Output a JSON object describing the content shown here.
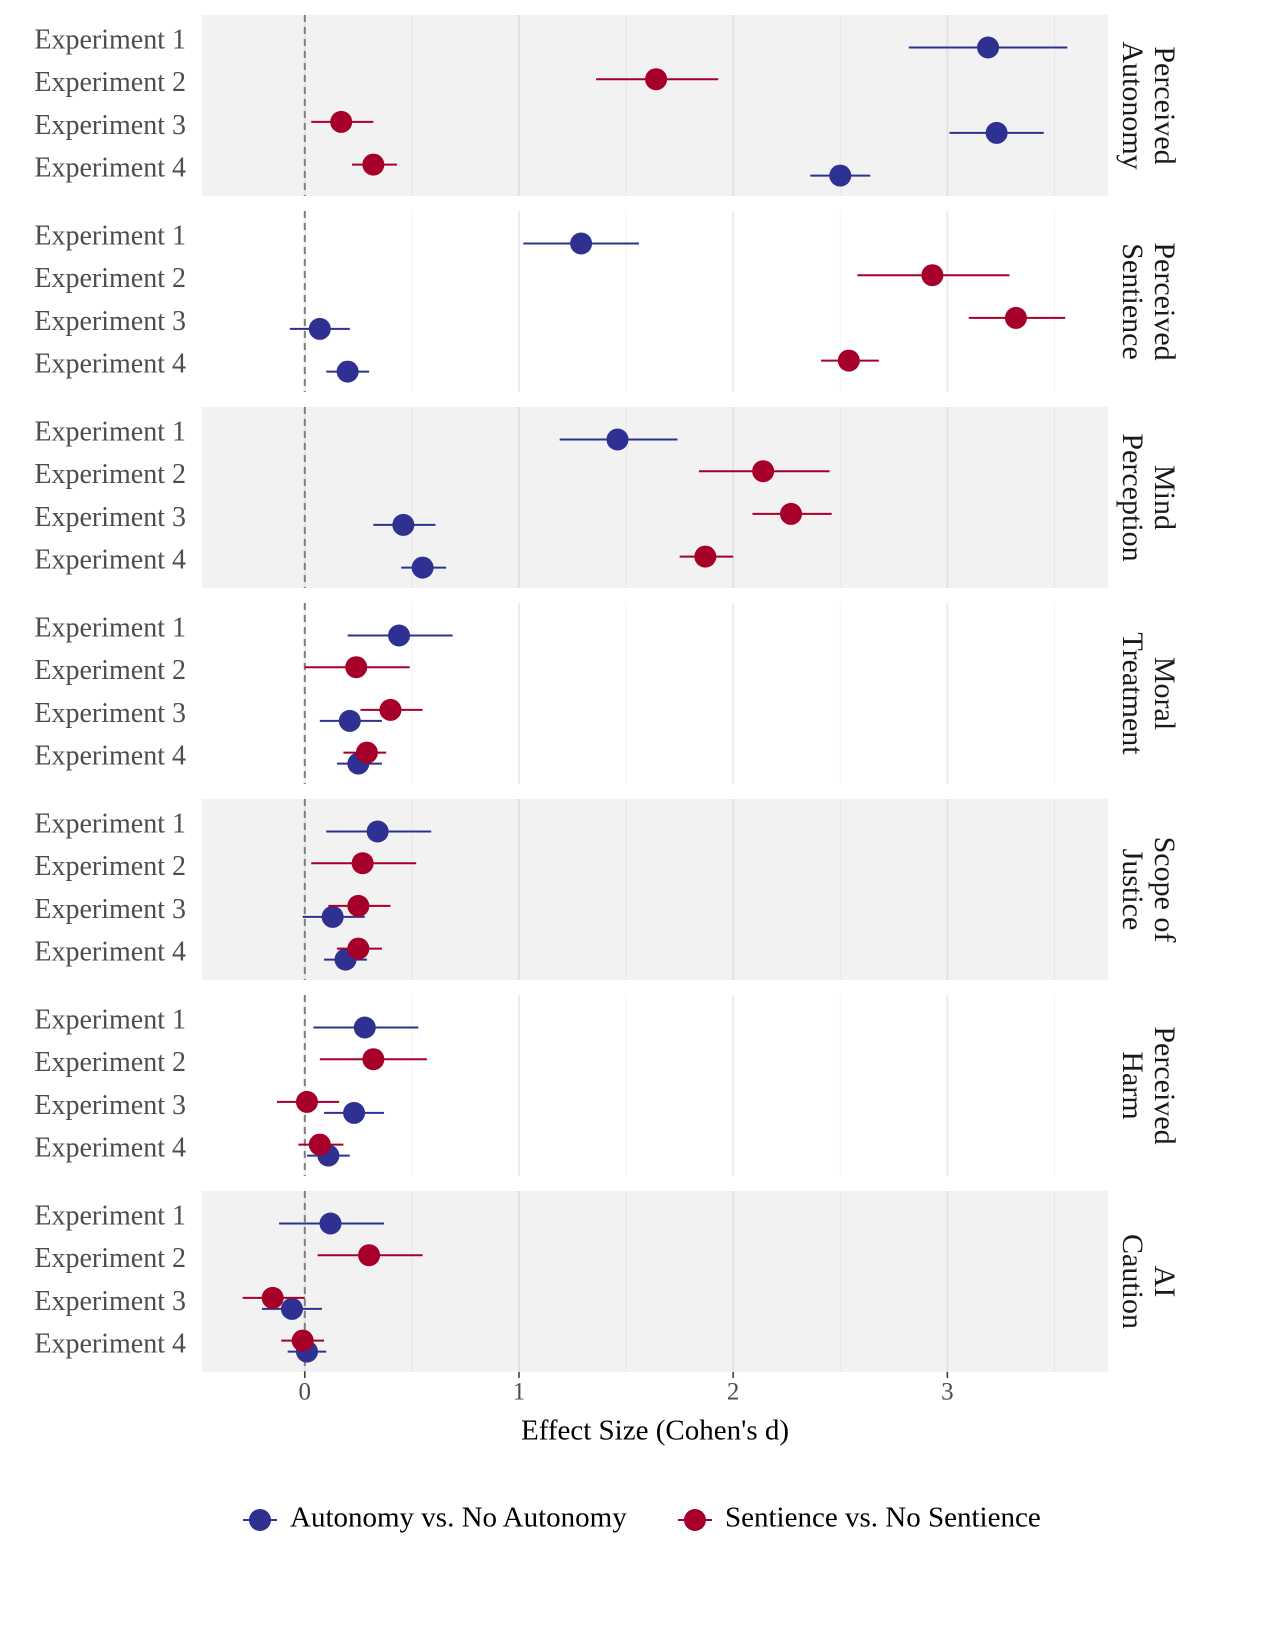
{
  "chart_data": {
    "type": "forest",
    "x_label": "Effect Size (Cohen's d)",
    "categories": [
      "Experiment 1",
      "Experiment 2",
      "Experiment 3",
      "Experiment 4"
    ],
    "xlim": [
      -0.48,
      3.75
    ],
    "xticks": [
      0,
      1,
      2,
      3
    ],
    "reference_line": 0,
    "grid": true,
    "legend_position": "bottom",
    "legend": [
      {
        "name": "Autonomy vs. No Autonomy",
        "color": "#2e3192"
      },
      {
        "name": "Sentience vs. No Sentience",
        "color": "#a6002a"
      }
    ],
    "panels": [
      {
        "strip": [
          "Perceived",
          "Autonomy"
        ],
        "series": [
          {
            "values": [
              3.19,
              null,
              3.23,
              2.5
            ],
            "lower": [
              2.82,
              null,
              3.01,
              2.36
            ],
            "upper": [
              3.56,
              null,
              3.45,
              2.64
            ]
          },
          {
            "values": [
              null,
              1.64,
              0.17,
              0.32
            ],
            "lower": [
              null,
              1.36,
              0.03,
              0.22
            ],
            "upper": [
              null,
              1.93,
              0.32,
              0.43
            ]
          }
        ]
      },
      {
        "strip": [
          "Perceived",
          "Sentience"
        ],
        "series": [
          {
            "values": [
              1.29,
              null,
              0.07,
              0.2
            ],
            "lower": [
              1.02,
              null,
              -0.07,
              0.1
            ],
            "upper": [
              1.56,
              null,
              0.21,
              0.3
            ]
          },
          {
            "values": [
              null,
              2.93,
              3.32,
              2.54
            ],
            "lower": [
              null,
              2.58,
              3.1,
              2.41
            ],
            "upper": [
              null,
              3.29,
              3.55,
              2.68
            ]
          }
        ]
      },
      {
        "strip": [
          "Mind",
          "Perception"
        ],
        "series": [
          {
            "values": [
              1.46,
              null,
              0.46,
              0.55
            ],
            "lower": [
              1.19,
              null,
              0.32,
              0.45
            ],
            "upper": [
              1.74,
              null,
              0.61,
              0.66
            ]
          },
          {
            "values": [
              null,
              2.14,
              2.27,
              1.87
            ],
            "lower": [
              null,
              1.84,
              2.09,
              1.75
            ],
            "upper": [
              null,
              2.45,
              2.46,
              2.0
            ]
          }
        ]
      },
      {
        "strip": [
          "Moral",
          "Treatment"
        ],
        "series": [
          {
            "values": [
              0.44,
              null,
              0.21,
              0.25
            ],
            "lower": [
              0.2,
              null,
              0.07,
              0.15
            ],
            "upper": [
              0.69,
              null,
              0.36,
              0.36
            ]
          },
          {
            "values": [
              null,
              0.24,
              0.4,
              0.29
            ],
            "lower": [
              null,
              0.0,
              0.26,
              0.18
            ],
            "upper": [
              null,
              0.49,
              0.55,
              0.38
            ]
          }
        ]
      },
      {
        "strip": [
          "Scope of",
          "Justice"
        ],
        "series": [
          {
            "values": [
              0.34,
              null,
              0.13,
              0.19
            ],
            "lower": [
              0.1,
              null,
              -0.01,
              0.09
            ],
            "upper": [
              0.59,
              null,
              0.28,
              0.29
            ]
          },
          {
            "values": [
              null,
              0.27,
              0.25,
              0.25
            ],
            "lower": [
              null,
              0.03,
              0.11,
              0.15
            ],
            "upper": [
              null,
              0.52,
              0.4,
              0.36
            ]
          }
        ]
      },
      {
        "strip": [
          "Perceived",
          "Harm"
        ],
        "series": [
          {
            "values": [
              0.28,
              null,
              0.23,
              0.11
            ],
            "lower": [
              0.04,
              null,
              0.09,
              0.01
            ],
            "upper": [
              0.53,
              null,
              0.37,
              0.21
            ]
          },
          {
            "values": [
              null,
              0.32,
              0.01,
              0.07
            ],
            "lower": [
              null,
              0.07,
              -0.13,
              -0.03
            ],
            "upper": [
              null,
              0.57,
              0.16,
              0.18
            ]
          }
        ]
      },
      {
        "strip": [
          "AI",
          "Caution"
        ],
        "series": [
          {
            "values": [
              0.12,
              null,
              -0.06,
              0.01
            ],
            "lower": [
              -0.12,
              null,
              -0.2,
              -0.08
            ],
            "upper": [
              0.37,
              null,
              0.08,
              0.1
            ]
          },
          {
            "values": [
              null,
              0.3,
              -0.15,
              -0.01
            ],
            "lower": [
              null,
              0.06,
              -0.29,
              -0.11
            ],
            "upper": [
              null,
              0.55,
              0.0,
              0.09
            ]
          }
        ]
      }
    ]
  }
}
